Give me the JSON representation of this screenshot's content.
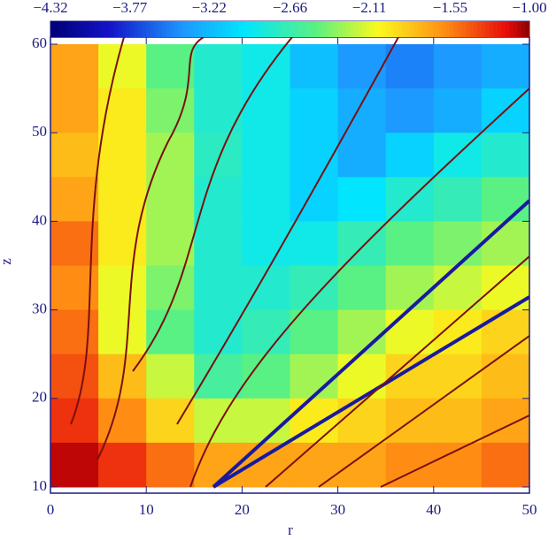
{
  "chart_data": {
    "type": "heatmap",
    "x_label": "r",
    "y_label": "z",
    "x": [
      2.5,
      7.5,
      12.5,
      17.5,
      22.5,
      27.5,
      32.5,
      37.5,
      42.5,
      47.5
    ],
    "y": [
      57.5,
      52.5,
      47.5,
      42.5,
      37.5,
      32.5,
      27.5,
      22.5,
      17.5,
      12.5
    ],
    "z": [
      [
        -1.7,
        -2.1,
        -2.5,
        -2.8,
        -2.9,
        -3.2,
        -3.4,
        -3.5,
        -3.4,
        -3.3
      ],
      [
        -1.7,
        -2.0,
        -2.4,
        -2.8,
        -2.9,
        -3.1,
        -3.3,
        -3.4,
        -3.3,
        -3.1
      ],
      [
        -1.8,
        -2.0,
        -2.3,
        -2.75,
        -2.9,
        -3.1,
        -3.3,
        -3.1,
        -2.9,
        -2.8
      ],
      [
        -1.7,
        -2.0,
        -2.3,
        -2.8,
        -2.9,
        -3.1,
        -3.0,
        -2.8,
        -2.7,
        -2.5
      ],
      [
        -1.5,
        -2.0,
        -2.3,
        -2.8,
        -2.9,
        -2.9,
        -2.7,
        -2.5,
        -2.4,
        -2.3
      ],
      [
        -1.6,
        -2.1,
        -2.4,
        -2.8,
        -2.8,
        -2.7,
        -2.5,
        -2.3,
        -2.2,
        -2.1
      ],
      [
        -1.5,
        -2.1,
        -2.5,
        -2.8,
        -2.7,
        -2.5,
        -2.3,
        -2.1,
        -2.0,
        -1.9
      ],
      [
        -1.4,
        -1.8,
        -2.2,
        -2.6,
        -2.5,
        -2.3,
        -2.1,
        -1.9,
        -1.9,
        -1.8
      ],
      [
        -1.3,
        -1.6,
        -1.9,
        -2.2,
        -2.2,
        -2.0,
        -1.9,
        -1.8,
        -1.8,
        -1.7
      ],
      [
        -1.1,
        -1.3,
        -1.5,
        -1.7,
        -1.7,
        -1.7,
        -1.7,
        -1.6,
        -1.6,
        -1.5
      ]
    ],
    "xlim": [
      0,
      50
    ],
    "ylim": [
      9.3,
      60.8
    ],
    "xticks": [
      0,
      10,
      20,
      30,
      40,
      50
    ],
    "yticks": [
      10,
      20,
      30,
      40,
      50,
      60
    ],
    "colorbar_lim": [
      -4.32,
      -1.0
    ],
    "colorbar_ticks": [
      {
        "value": -4.32,
        "label": "−4.32"
      },
      {
        "value": -3.77,
        "label": "−3.77"
      },
      {
        "value": -3.22,
        "label": "−3.22"
      },
      {
        "value": -2.66,
        "label": "−2.66"
      },
      {
        "value": -2.11,
        "label": "−2.11"
      },
      {
        "value": -1.55,
        "label": "−1.55"
      },
      {
        "value": -1.0,
        "label": "−1.00"
      }
    ],
    "colormap": "rainbow"
  }
}
